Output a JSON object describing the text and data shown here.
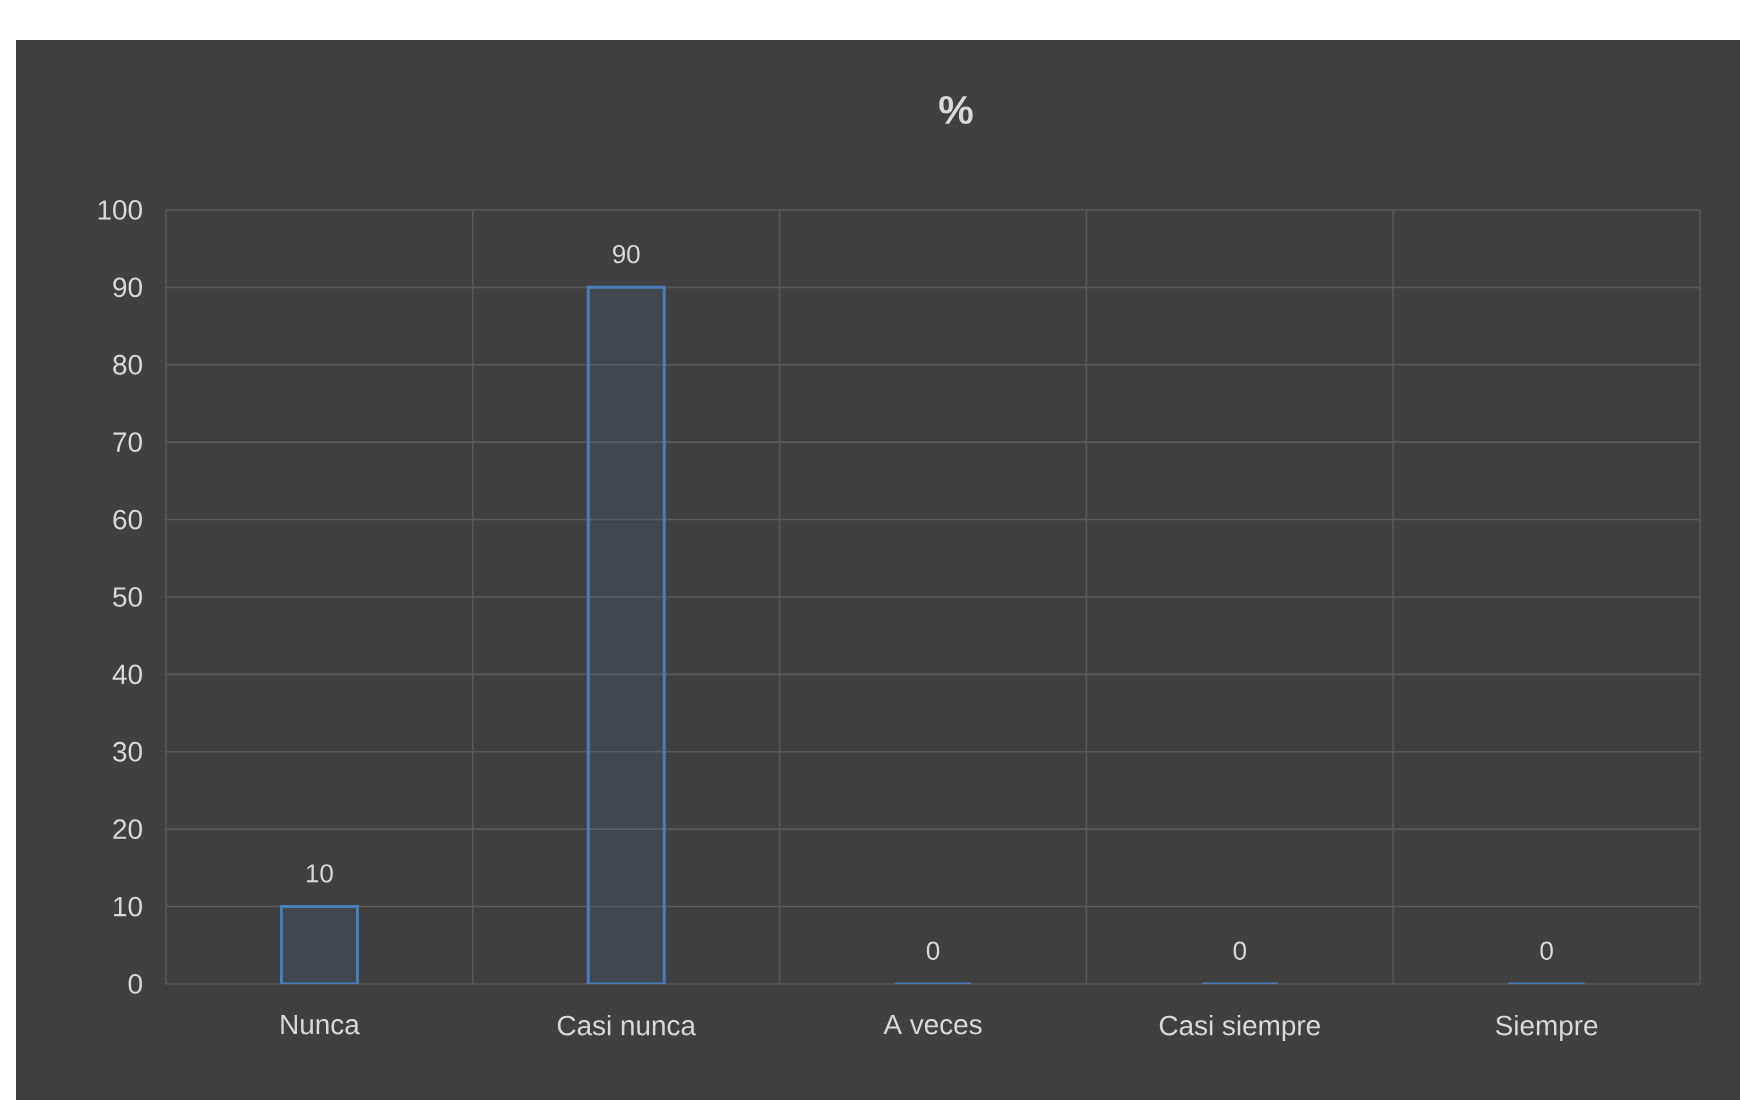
{
  "chart_data": {
    "type": "bar",
    "title": "%",
    "categories": [
      "Nunca",
      "Casi nunca",
      "A veces",
      "Casi siempre",
      "Siempre"
    ],
    "values": [
      10,
      90,
      0,
      0,
      0
    ],
    "color": "#4a7ebb",
    "ylim": [
      0,
      100
    ],
    "yticks": [
      0,
      10,
      20,
      30,
      40,
      50,
      60,
      70,
      80,
      90,
      100
    ],
    "grid": true,
    "data_labels": true
  }
}
